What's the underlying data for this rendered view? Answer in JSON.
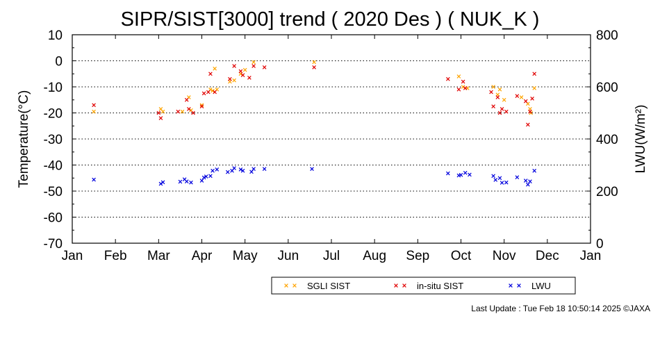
{
  "chart_data": {
    "type": "scatter",
    "title": "SIPR/SIST[3000] trend ( 2020 Des ) ( NUK_K )",
    "xlabel": "",
    "ylabel": "Temperature(°C)",
    "y2label": "LWU(W/m²)",
    "x_ticks": [
      "Jan",
      "Feb",
      "Mar",
      "Apr",
      "May",
      "Jun",
      "Jul",
      "Aug",
      "Sep",
      "Oct",
      "Nov",
      "Dec",
      "Jan"
    ],
    "xlim": [
      0,
      12
    ],
    "ylim": [
      -70,
      10
    ],
    "y_ticks": [
      "10",
      "0",
      "-10",
      "-20",
      "-30",
      "-40",
      "-50",
      "-60",
      "-70"
    ],
    "y2lim": [
      0,
      800
    ],
    "y2_ticks": [
      "800",
      "600",
      "400",
      "200",
      "0"
    ],
    "grid": "dotted horizontal",
    "legend_position": "bottom-right",
    "series": [
      {
        "name": "SGLI SIST",
        "color": "#ffa500",
        "axis": "left",
        "points": [
          [
            0.5,
            -19.5
          ],
          [
            2.05,
            -18.5
          ],
          [
            2.1,
            -19.5
          ],
          [
            2.55,
            -19.5
          ],
          [
            2.7,
            -14
          ],
          [
            2.75,
            -19
          ],
          [
            3.0,
            -17
          ],
          [
            3.2,
            -11
          ],
          [
            3.25,
            -11.5
          ],
          [
            3.3,
            -3
          ],
          [
            3.35,
            -11
          ],
          [
            3.65,
            -8
          ],
          [
            3.75,
            -7.5
          ],
          [
            3.9,
            -5
          ],
          [
            4.0,
            -3.5
          ],
          [
            4.2,
            -0.5
          ],
          [
            5.6,
            -0.5
          ],
          [
            8.95,
            -6
          ],
          [
            9.05,
            -10
          ],
          [
            9.15,
            -10.5
          ],
          [
            9.75,
            -10
          ],
          [
            9.85,
            -13
          ],
          [
            9.9,
            -11
          ],
          [
            10.0,
            -15
          ],
          [
            10.4,
            -14
          ],
          [
            10.55,
            -16.5
          ],
          [
            10.6,
            -18.5
          ],
          [
            10.62,
            -20
          ],
          [
            10.7,
            -10.5
          ]
        ]
      },
      {
        "name": "in-situ SIST",
        "color": "#e00000",
        "axis": "left",
        "points": [
          [
            0.5,
            -17
          ],
          [
            2.0,
            -20
          ],
          [
            2.05,
            -22
          ],
          [
            2.45,
            -19.5
          ],
          [
            2.65,
            -15
          ],
          [
            2.7,
            -18.5
          ],
          [
            2.8,
            -20
          ],
          [
            3.0,
            -17.5
          ],
          [
            3.05,
            -12.5
          ],
          [
            3.15,
            -12
          ],
          [
            3.2,
            -5
          ],
          [
            3.3,
            -12
          ],
          [
            3.65,
            -7
          ],
          [
            3.75,
            -2
          ],
          [
            3.9,
            -4
          ],
          [
            3.95,
            -5.5
          ],
          [
            4.1,
            -6.5
          ],
          [
            4.2,
            -2
          ],
          [
            4.45,
            -2.5
          ],
          [
            5.6,
            -2.5
          ],
          [
            8.7,
            -7
          ],
          [
            8.95,
            -11
          ],
          [
            9.05,
            -8
          ],
          [
            9.1,
            -10.5
          ],
          [
            9.7,
            -12
          ],
          [
            9.75,
            -17.5
          ],
          [
            9.85,
            -14
          ],
          [
            9.9,
            -20
          ],
          [
            9.95,
            -18.5
          ],
          [
            10.05,
            -19.5
          ],
          [
            10.3,
            -13.5
          ],
          [
            10.5,
            -15.5
          ],
          [
            10.55,
            -24.5
          ],
          [
            10.6,
            -19.5
          ],
          [
            10.65,
            -14.5
          ],
          [
            10.7,
            -5
          ]
        ]
      },
      {
        "name": "LWU",
        "color": "#0000dd",
        "axis": "right",
        "points": [
          [
            0.5,
            244
          ],
          [
            2.05,
            228
          ],
          [
            2.1,
            234
          ],
          [
            2.5,
            236
          ],
          [
            2.6,
            245
          ],
          [
            2.65,
            237
          ],
          [
            2.75,
            233
          ],
          [
            3.0,
            240
          ],
          [
            3.05,
            252
          ],
          [
            3.1,
            256
          ],
          [
            3.2,
            258
          ],
          [
            3.25,
            278
          ],
          [
            3.35,
            283
          ],
          [
            3.6,
            273
          ],
          [
            3.7,
            278
          ],
          [
            3.75,
            288
          ],
          [
            3.9,
            283
          ],
          [
            3.95,
            278
          ],
          [
            4.15,
            274
          ],
          [
            4.2,
            285
          ],
          [
            4.45,
            285
          ],
          [
            5.55,
            285
          ],
          [
            8.7,
            268
          ],
          [
            8.95,
            260
          ],
          [
            9.0,
            262
          ],
          [
            9.1,
            270
          ],
          [
            9.2,
            263
          ],
          [
            9.75,
            258
          ],
          [
            9.8,
            243
          ],
          [
            9.9,
            250
          ],
          [
            9.95,
            232
          ],
          [
            10.05,
            233
          ],
          [
            10.3,
            253
          ],
          [
            10.5,
            240
          ],
          [
            10.55,
            225
          ],
          [
            10.6,
            237
          ],
          [
            10.7,
            278
          ]
        ]
      }
    ]
  },
  "footer": {
    "last_update": "Last Update : Tue Feb 18 10:50:14 2025",
    "credit": "©JAXA"
  }
}
